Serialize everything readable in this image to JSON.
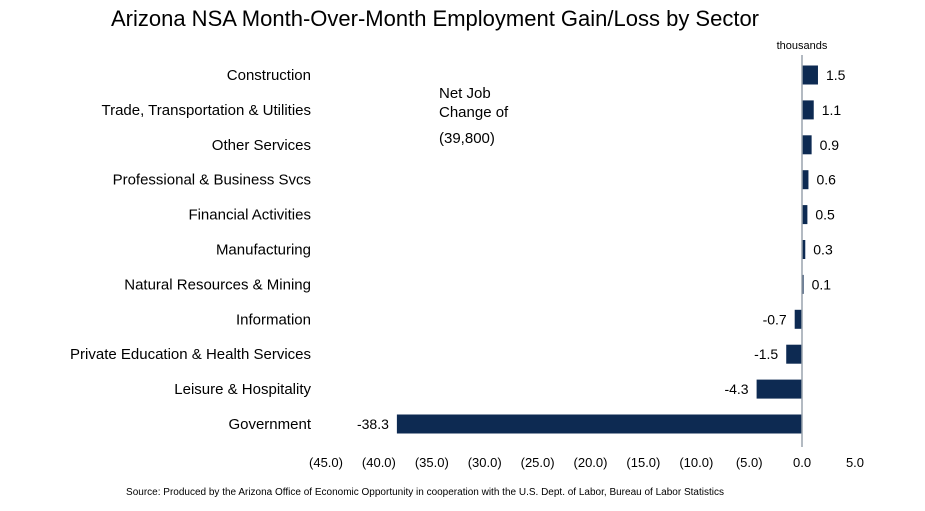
{
  "chart_data": {
    "type": "bar",
    "orientation": "horizontal",
    "title": "Arizona NSA Month-Over-Month Employment Gain/Loss by Sector",
    "unit_label": "thousands",
    "categories": [
      "Construction",
      "Trade, Transportation & Utilities",
      "Other Services",
      "Professional & Business Svcs",
      "Financial Activities",
      "Manufacturing",
      "Natural Resources & Mining",
      "Information",
      "Private Education & Health Services",
      "Leisure & Hospitality",
      "Government"
    ],
    "values": [
      1.5,
      1.1,
      0.9,
      0.6,
      0.5,
      0.3,
      0.1,
      -0.7,
      -1.5,
      -4.3,
      -38.3
    ],
    "value_labels": [
      "1.5",
      "1.1",
      "0.9",
      "0.6",
      "0.5",
      "0.3",
      "0.1",
      "-0.7",
      "-1.5",
      "-4.3",
      "-38.3"
    ],
    "xlim": [
      -45,
      5
    ],
    "x_ticks": [
      -45,
      -40,
      -35,
      -30,
      -25,
      -20,
      -15,
      -10,
      -5,
      0,
      5
    ],
    "x_tick_labels": [
      "(45.0)",
      "(40.0)",
      "(35.0)",
      "(30.0)",
      "(25.0)",
      "(20.0)",
      "(15.0)",
      "(10.0)",
      "(5.0)",
      "0.0",
      "5.0"
    ],
    "grid": false,
    "legend": "none",
    "bar_color": "#0d2a52",
    "annotation": {
      "line1": "Net Job",
      "line2": "Change of",
      "value": "(39,800)"
    },
    "source": "Source: Produced by the Arizona Office of Economic Opportunity in cooperation with the U.S. Dept. of Labor, Bureau of Labor Statistics"
  }
}
